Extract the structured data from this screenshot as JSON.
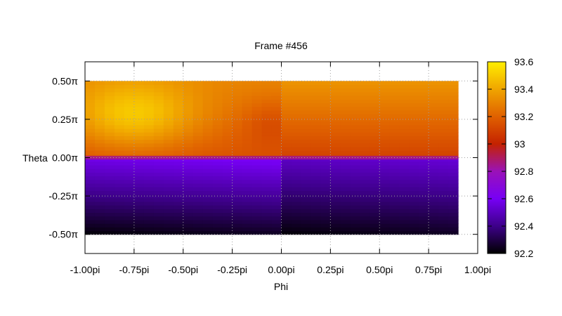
{
  "chart_data": {
    "type": "heatmap",
    "title": "Frame #456",
    "xlabel": "Phi",
    "ylabel": "Theta",
    "xlim": [
      -1.0,
      1.0
    ],
    "ylim": [
      -0.625,
      0.625
    ],
    "x_ticks": [
      {
        "value": -1.0,
        "label": "-1.00pi"
      },
      {
        "value": -0.75,
        "label": "-0.75pi"
      },
      {
        "value": -0.5,
        "label": "-0.50pi"
      },
      {
        "value": -0.25,
        "label": "-0.25pi"
      },
      {
        "value": 0.0,
        "label": "0.00pi"
      },
      {
        "value": 0.25,
        "label": "0.25pi"
      },
      {
        "value": 0.5,
        "label": "0.50pi"
      },
      {
        "value": 0.75,
        "label": "0.75pi"
      },
      {
        "value": 1.0,
        "label": "1.00pi"
      }
    ],
    "y_ticks": [
      {
        "value": 0.5,
        "label": "0.50π"
      },
      {
        "value": 0.25,
        "label": "0.25π"
      },
      {
        "value": 0.0,
        "label": "0.00π"
      },
      {
        "value": -0.25,
        "label": "-0.25π"
      },
      {
        "value": -0.5,
        "label": "-0.50π"
      }
    ],
    "grid": true,
    "data_extent": {
      "x": [
        -1.0,
        0.9
      ],
      "y": [
        -0.5,
        0.5
      ]
    },
    "regions": [
      {
        "name": "upper-left",
        "x": [
          -1.0,
          0.0
        ],
        "y": [
          0.0,
          0.5
        ],
        "value_top": 93.3,
        "value_bottom": 93.15,
        "hotspot": {
          "x": -0.75,
          "y": 0.3,
          "value": 93.5
        },
        "coolspot": {
          "x": -0.05,
          "y": 0.2,
          "value": 93.1
        }
      },
      {
        "name": "upper-right",
        "x": [
          0.0,
          0.9
        ],
        "y": [
          0.0,
          0.5
        ],
        "value_top": 93.35,
        "value_bottom": 93.1
      },
      {
        "name": "lower-left",
        "x": [
          -1.0,
          0.0
        ],
        "y": [
          -0.5,
          0.0
        ],
        "value_top": 92.62,
        "value_bottom": 92.25
      },
      {
        "name": "lower-right",
        "x": [
          0.0,
          0.9
        ],
        "y": [
          -0.5,
          0.0
        ],
        "value_top": 92.55,
        "value_bottom": 92.25
      }
    ],
    "colorbar": {
      "min": 92.2,
      "max": 93.6,
      "ticks": [
        {
          "value": 93.6,
          "label": "93.6"
        },
        {
          "value": 93.4,
          "label": "93.4"
        },
        {
          "value": 93.2,
          "label": "93.2"
        },
        {
          "value": 93.0,
          "label": "93"
        },
        {
          "value": 92.8,
          "label": "92.8"
        },
        {
          "value": 92.6,
          "label": "92.6"
        },
        {
          "value": 92.4,
          "label": "92.4"
        },
        {
          "value": 92.2,
          "label": "92.2"
        }
      ],
      "palette": [
        "#000000",
        "#3d0089",
        "#7700f5",
        "#9a12b8",
        "#c42200",
        "#e06100",
        "#f0a500",
        "#ffee00"
      ]
    }
  }
}
